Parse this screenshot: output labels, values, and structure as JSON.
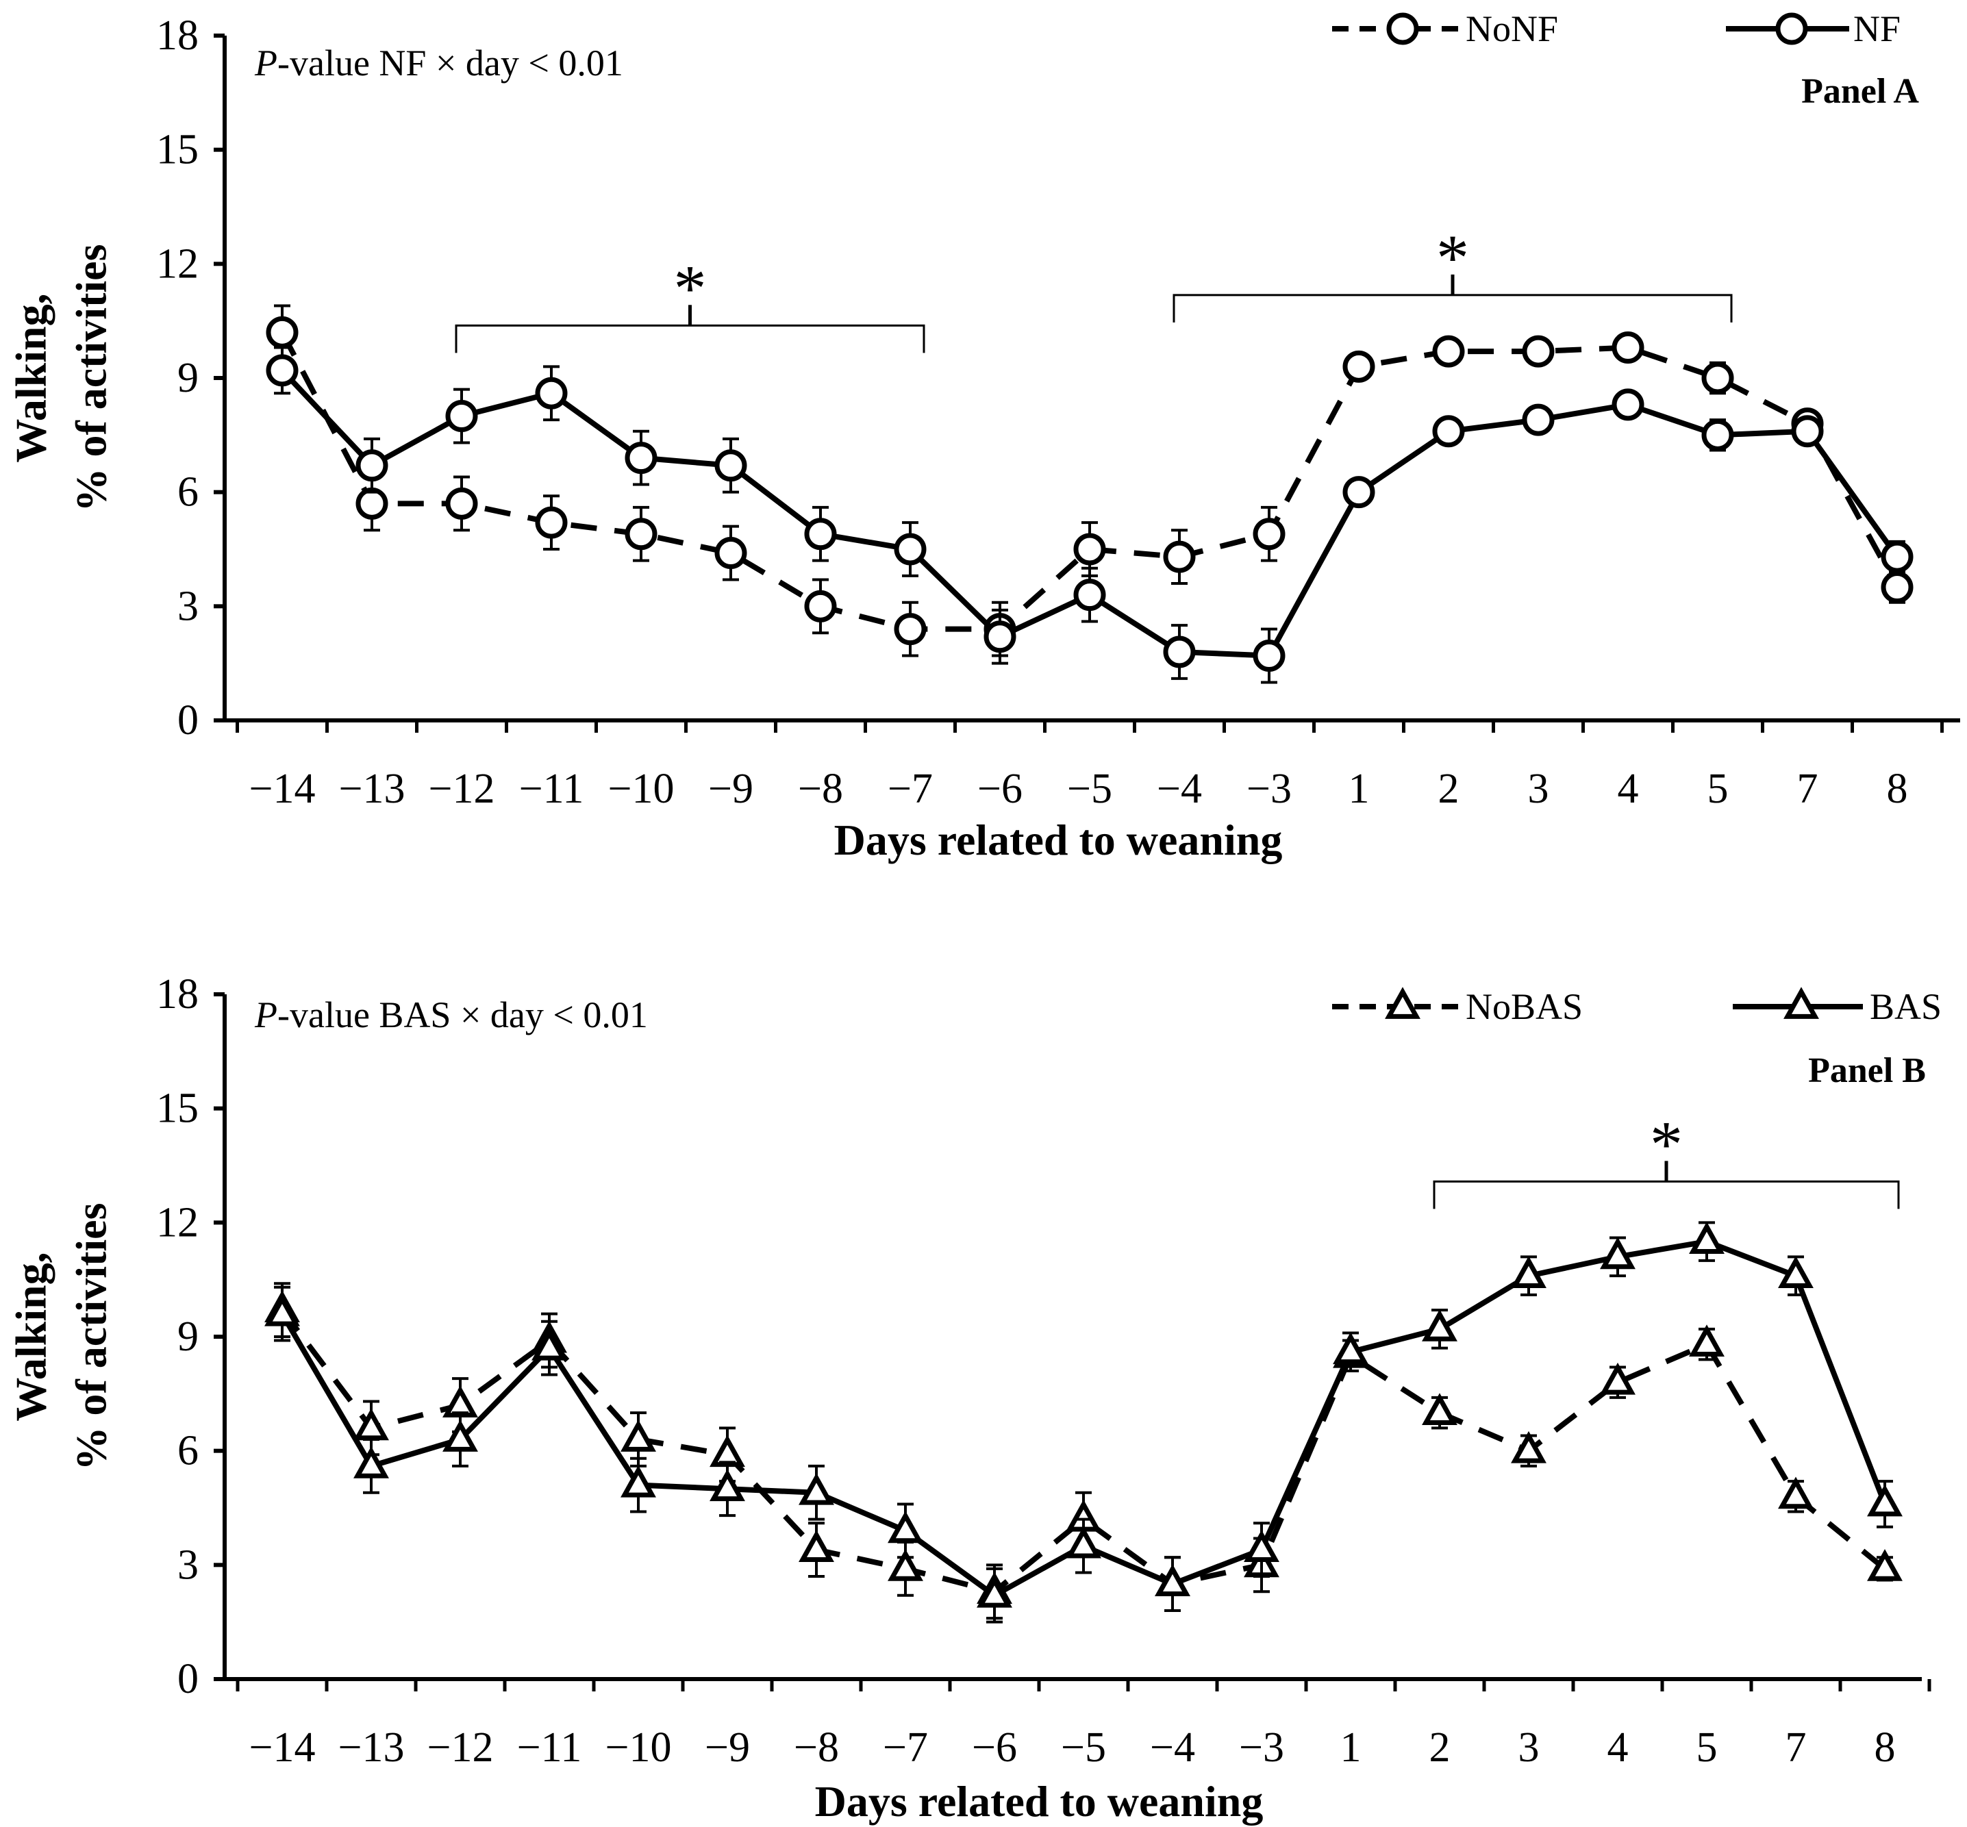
{
  "chart_data": [
    {
      "type": "line",
      "panel_label": "Panel A",
      "annotation": "P-value NF × day < 0.01",
      "annotation_parts": {
        "italic": "P",
        "rest": "-value NF × day < 0.01"
      },
      "xlabel": "Days related to weaning",
      "ylabel_line1": "Walking,",
      "ylabel_line2": "% of activities",
      "ylim": [
        0,
        18
      ],
      "yticks": [
        "0",
        "3",
        "6",
        "9",
        "12",
        "15",
        "18"
      ],
      "categories": [
        "−14",
        "−13",
        "−12",
        "−11",
        "−10",
        "−9",
        "−8",
        "−7",
        "−6",
        "−5",
        "−4",
        "−3",
        "1",
        "2",
        "3",
        "4",
        "5",
        "7",
        "8"
      ],
      "marker": "circle",
      "series": [
        {
          "name": "NoNF",
          "style": "dashed",
          "values": [
            10.2,
            5.7,
            5.7,
            5.2,
            4.9,
            4.4,
            3.0,
            2.4,
            2.4,
            4.5,
            4.3,
            4.9,
            9.3,
            9.7,
            9.7,
            9.8,
            9.0,
            7.8,
            3.5
          ],
          "errors": [
            0.7,
            0.7,
            0.7,
            0.7,
            0.7,
            0.7,
            0.7,
            0.7,
            0.7,
            0.7,
            0.7,
            0.7,
            0.3,
            0.3,
            0.3,
            0.3,
            0.4,
            0.3,
            0.4
          ]
        },
        {
          "name": "NF",
          "style": "solid",
          "values": [
            9.2,
            6.7,
            8.0,
            8.6,
            6.9,
            6.7,
            4.9,
            4.5,
            2.2,
            3.3,
            1.8,
            1.7,
            6.0,
            7.6,
            7.9,
            8.3,
            7.5,
            7.6,
            4.3
          ],
          "errors": [
            0.6,
            0.7,
            0.7,
            0.7,
            0.7,
            0.7,
            0.7,
            0.7,
            0.7,
            0.7,
            0.7,
            0.7,
            0.3,
            0.3,
            0.3,
            0.3,
            0.4,
            0.3,
            0.4
          ]
        }
      ],
      "significance": [
        {
          "label": "*",
          "from": "−12",
          "to": "−7",
          "start_index": 2,
          "end_index": 7
        },
        {
          "label": "*",
          "from": "−4",
          "to": "5",
          "start_index": 10,
          "end_index": 16
        }
      ]
    },
    {
      "type": "line",
      "panel_label": "Panel B",
      "annotation": "P-value BAS × day < 0.01",
      "annotation_parts": {
        "italic": "P",
        "rest": "-value BAS × day < 0.01"
      },
      "xlabel": "Days related to weaning",
      "ylabel_line1": "Walking,",
      "ylabel_line2": "% of activities",
      "ylim": [
        0,
        18
      ],
      "yticks": [
        "0",
        "3",
        "6",
        "9",
        "12",
        "15",
        "18"
      ],
      "categories": [
        "−14",
        "−13",
        "−12",
        "−11",
        "−10",
        "−9",
        "−8",
        "−7",
        "−6",
        "−5",
        "−4",
        "−3",
        "1",
        "2",
        "3",
        "4",
        "5",
        "7",
        "8"
      ],
      "marker": "triangle",
      "series": [
        {
          "name": "NoBAS",
          "style": "dashed",
          "values": [
            9.7,
            6.6,
            7.2,
            8.9,
            6.3,
            5.9,
            3.4,
            2.9,
            2.3,
            4.2,
            2.5,
            3.0,
            8.5,
            7.0,
            6.0,
            7.8,
            8.8,
            4.8,
            2.9
          ],
          "errors": [
            0.7,
            0.7,
            0.7,
            0.7,
            0.7,
            0.7,
            0.7,
            0.7,
            0.7,
            0.7,
            0.7,
            0.7,
            0.4,
            0.4,
            0.4,
            0.4,
            0.4,
            0.4,
            0.3
          ]
        },
        {
          "name": "BAS",
          "style": "solid",
          "values": [
            9.6,
            5.6,
            6.3,
            8.7,
            5.1,
            5.0,
            4.9,
            3.9,
            2.2,
            3.5,
            2.5,
            3.4,
            8.6,
            9.2,
            10.6,
            11.1,
            11.5,
            10.6,
            4.6
          ],
          "errors": [
            0.7,
            0.7,
            0.7,
            0.7,
            0.7,
            0.7,
            0.7,
            0.7,
            0.7,
            0.7,
            0.7,
            0.7,
            0.5,
            0.5,
            0.5,
            0.5,
            0.5,
            0.5,
            0.6
          ]
        }
      ],
      "significance": [
        {
          "label": "*",
          "from": "2",
          "to": "8",
          "start_index": 13,
          "end_index": 18
        }
      ]
    }
  ]
}
